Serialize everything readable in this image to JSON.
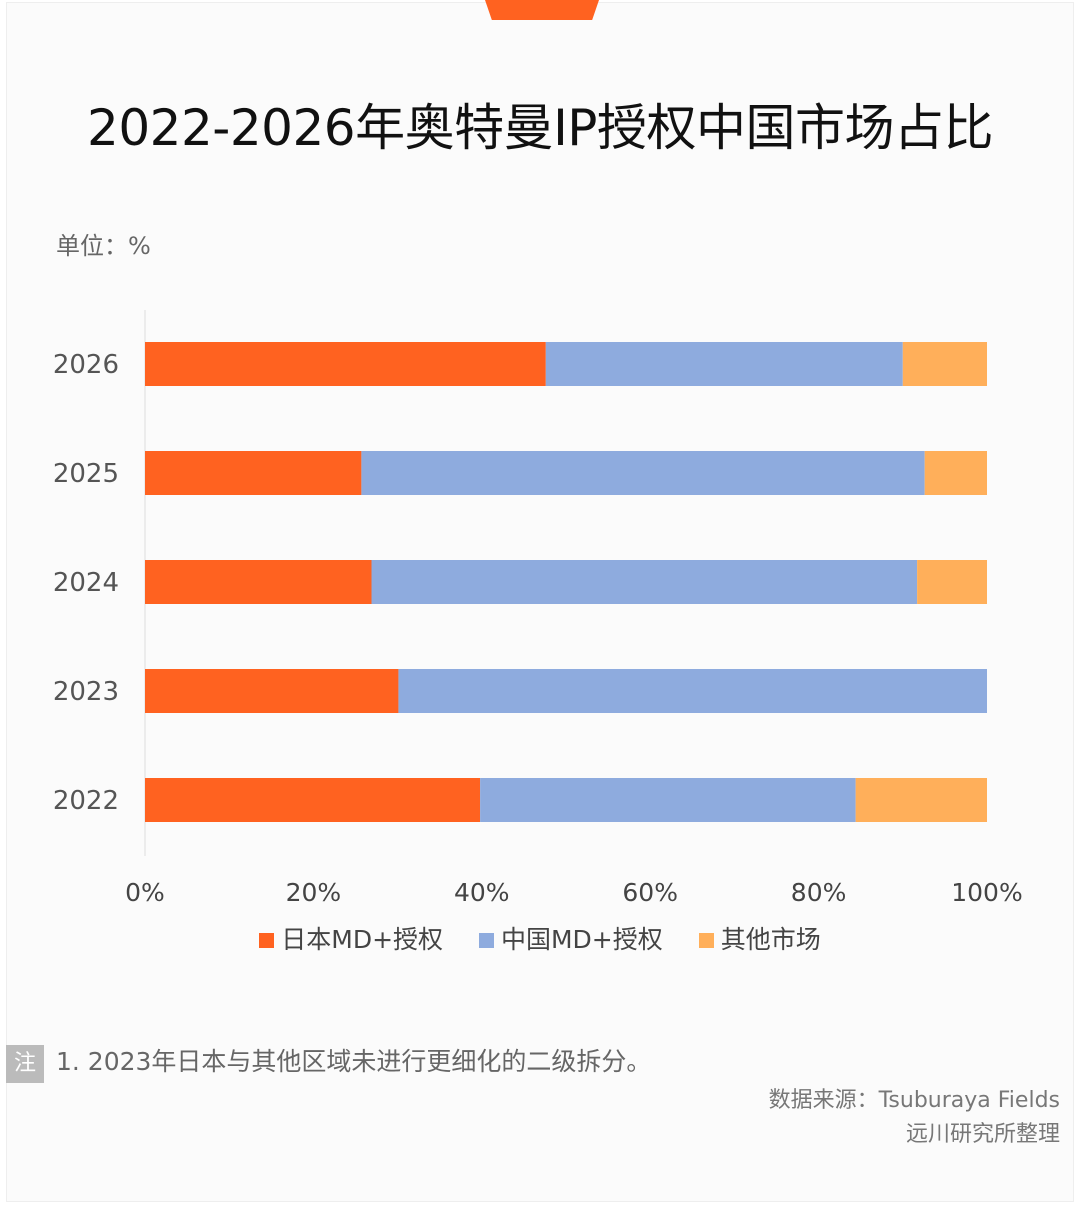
{
  "title": "2022-2026年奥特曼IP授权中国市场占比",
  "unit_label": "单位：%",
  "note": {
    "badge": "注",
    "text": "1. 2023年日本与其他区域未进行更细化的二级拆分。"
  },
  "source": {
    "line1": "数据来源：Tsuburaya Fields",
    "line2": "远川研究所整理"
  },
  "colors": {
    "japan": "#ff6220",
    "china": "#8eabde",
    "other": "#ffaf5a",
    "tab": "#ff6220"
  },
  "chart_data": {
    "type": "bar",
    "orientation": "horizontal",
    "stacked": true,
    "categories": [
      "2026",
      "2025",
      "2024",
      "2023",
      "2022"
    ],
    "series": [
      {
        "name": "日本MD+授权",
        "values": [
          47.6,
          25.7,
          26.9,
          30.1,
          39.8
        ]
      },
      {
        "name": "中国MD+授权",
        "values": [
          42.4,
          66.9,
          64.8,
          69.9,
          44.6
        ]
      },
      {
        "name": "其他市场",
        "values": [
          10.0,
          7.4,
          8.3,
          0,
          15.6
        ]
      }
    ],
    "xlim": [
      0,
      100
    ],
    "xticks": [
      "0%",
      "20%",
      "40%",
      "60%",
      "80%",
      "100%"
    ],
    "grid": false,
    "legend": "bottom"
  }
}
